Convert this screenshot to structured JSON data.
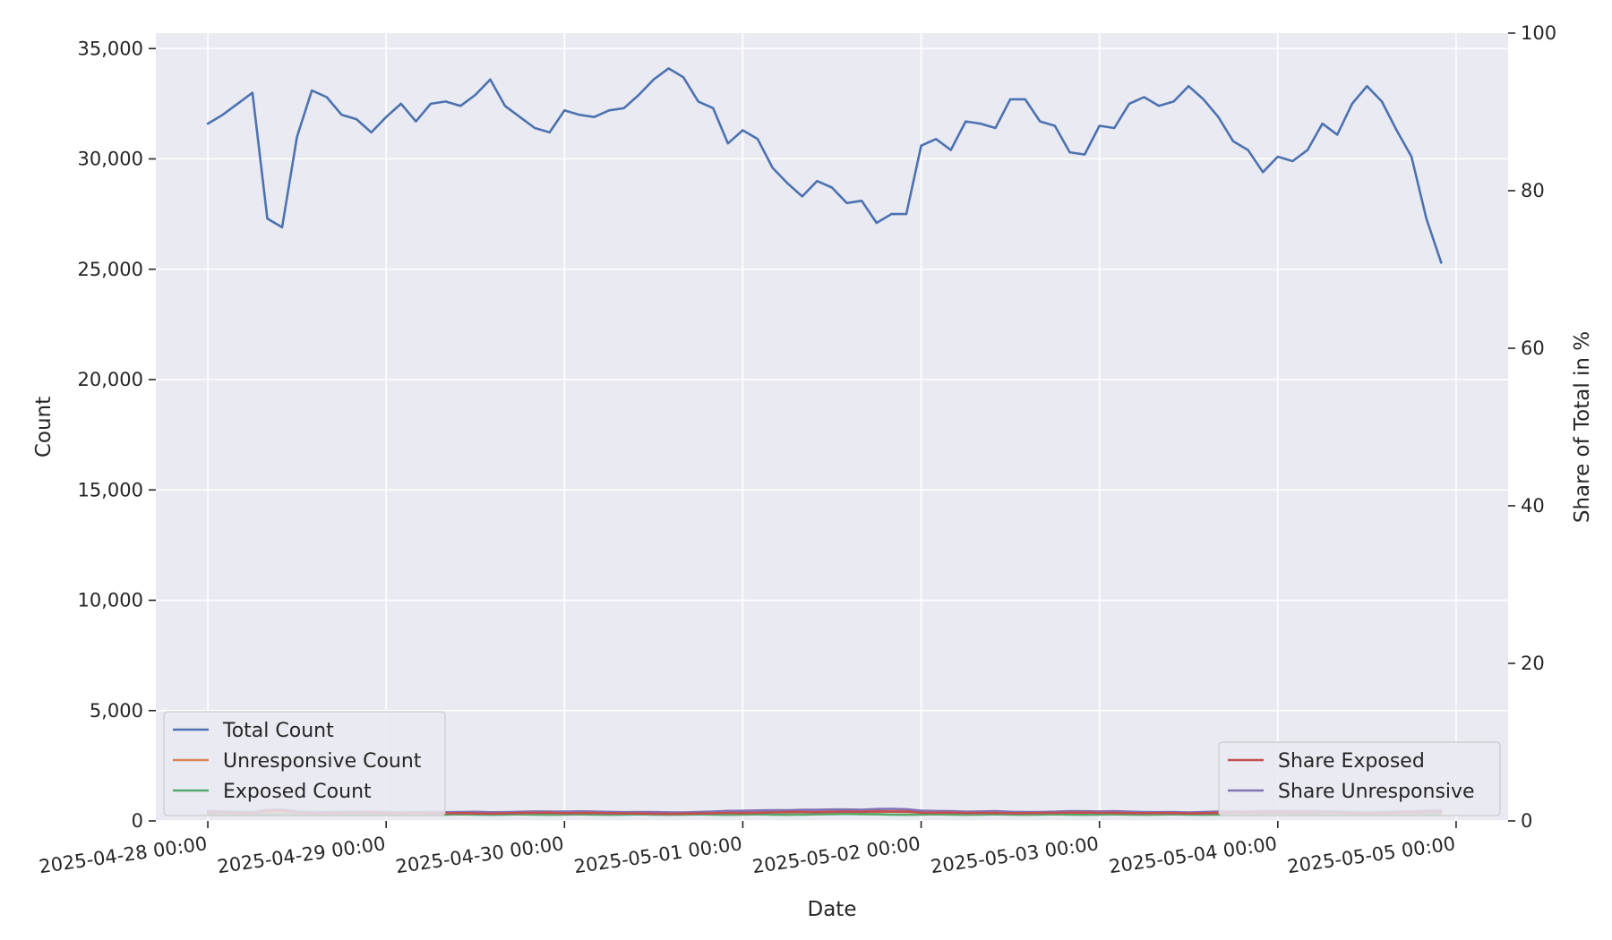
{
  "chart_data": {
    "type": "line",
    "xlabel": "Date",
    "ylabel": "Count",
    "y2label": "Share of Total in %",
    "x_start": "2025-04-28 00:00",
    "x_step_hours": 2,
    "x_ticks": [
      "2025-04-28 00:00",
      "2025-04-29 00:00",
      "2025-04-30 00:00",
      "2025-05-01 00:00",
      "2025-05-02 00:00",
      "2025-05-03 00:00",
      "2025-05-04 00:00",
      "2025-05-05 00:00"
    ],
    "ylim": [
      0,
      35700
    ],
    "y_ticks": [
      0,
      5000,
      10000,
      15000,
      20000,
      25000,
      30000,
      35000
    ],
    "y_tick_labels": [
      "0",
      "5,000",
      "10,000",
      "15,000",
      "20,000",
      "25,000",
      "30,000",
      "35,000"
    ],
    "y2lim": [
      0,
      100
    ],
    "y2_ticks": [
      0,
      20,
      40,
      60,
      80,
      100
    ],
    "y2_tick_labels": [
      "0",
      "20",
      "40",
      "60",
      "80",
      "100"
    ],
    "grid": true,
    "legend_left": [
      "Total Count",
      "Unresponsive Count",
      "Exposed Count"
    ],
    "legend_right": [
      "Share Exposed",
      "Share Unresponsive"
    ],
    "legend_left_placement": "lower-left",
    "legend_right_placement": "lower-right",
    "series": [
      {
        "name": "Total Count",
        "axis": "left",
        "color": "#4c72b0",
        "values": [
          31600,
          32000,
          32500,
          33000,
          27300,
          26900,
          31000,
          33100,
          32800,
          32000,
          31800,
          31200,
          31900,
          32500,
          31700,
          32500,
          32600,
          32400,
          32900,
          33600,
          32400,
          31900,
          31400,
          31200,
          32200,
          32000,
          31900,
          32200,
          32300,
          32900,
          33600,
          34100,
          33700,
          32600,
          32300,
          30700,
          31300,
          30900,
          29600,
          28900,
          28300,
          29000,
          28700,
          28000,
          28100,
          27100,
          27500,
          27500,
          30600,
          30900,
          30400,
          31700,
          31600,
          31400,
          32700,
          32700,
          31700,
          31500,
          30300,
          30200,
          31500,
          31400,
          32500,
          32800,
          32400,
          32600,
          33300,
          32700,
          31900,
          30800,
          30400,
          29400,
          30100,
          29900,
          30400,
          31600,
          31100,
          32500,
          33300,
          32600,
          31300,
          30100,
          27300,
          25300
        ]
      },
      {
        "name": "Unresponsive Count",
        "axis": "left",
        "color": "#dd8452",
        "values": [
          400,
          390,
          380,
          370,
          380,
          390,
          380,
          370,
          360,
          370,
          380,
          370,
          360,
          350,
          360,
          370,
          360,
          370,
          380,
          370,
          360,
          370,
          380,
          370,
          380,
          390,
          380,
          370,
          360,
          370,
          380,
          370,
          360,
          370,
          380,
          390,
          400,
          410,
          400,
          390,
          400,
          410,
          420,
          410,
          400,
          410,
          420,
          410,
          400,
          390,
          380,
          370,
          380,
          390,
          380,
          370,
          360,
          370,
          380,
          370,
          380,
          390,
          380,
          370,
          360,
          370,
          360,
          370,
          380,
          370,
          360,
          370,
          380,
          370,
          380,
          390,
          380,
          370,
          360,
          370,
          380,
          370,
          360,
          350
        ]
      },
      {
        "name": "Exposed Count",
        "axis": "left",
        "color": "#55a868",
        "values": [
          300,
          300,
          290,
          280,
          290,
          300,
          290,
          280,
          290,
          300,
          290,
          280,
          290,
          300,
          290,
          280,
          290,
          300,
          290,
          280,
          290,
          300,
          290,
          280,
          290,
          300,
          290,
          280,
          290,
          300,
          290,
          280,
          290,
          300,
          290,
          280,
          290,
          300,
          290,
          280,
          290,
          300,
          310,
          320,
          310,
          300,
          290,
          280,
          290,
          300,
          290,
          280,
          290,
          300,
          290,
          280,
          290,
          300,
          290,
          280,
          290,
          300,
          290,
          280,
          290,
          300,
          290,
          280,
          290,
          300,
          290,
          280,
          290,
          300,
          290,
          280,
          290,
          300,
          290,
          280,
          290,
          300,
          290,
          280
        ]
      },
      {
        "name": "Share Exposed",
        "axis": "right",
        "color": "#c44e52",
        "values": [
          1.05,
          1.02,
          1.0,
          0.98,
          1.3,
          1.35,
          1.0,
          0.95,
          0.97,
          1.0,
          1.02,
          1.05,
          1.0,
          0.97,
          1.0,
          0.98,
          0.97,
          0.99,
          0.96,
          0.93,
          0.98,
          1.0,
          1.03,
          1.04,
          0.98,
          1.0,
          1.01,
          0.98,
          0.97,
          0.95,
          0.92,
          0.9,
          0.93,
          0.96,
          0.98,
          1.02,
          1.0,
          1.03,
          1.08,
          1.12,
          1.15,
          1.1,
          1.14,
          1.18,
          1.16,
          1.22,
          1.2,
          1.2,
          1.05,
          1.03,
          1.06,
          1.0,
          1.01,
          1.02,
          0.98,
          0.98,
          1.01,
          1.02,
          1.06,
          1.07,
          1.02,
          1.03,
          0.99,
          0.98,
          1.0,
          0.99,
          0.96,
          0.98,
          1.01,
          1.04,
          1.06,
          1.09,
          1.06,
          1.07,
          1.05,
          1.01,
          1.03,
          0.98,
          0.96,
          0.98,
          1.02,
          1.06,
          1.12,
          1.15
        ]
      },
      {
        "name": "Share Unresponsive",
        "axis": "right",
        "color": "#8172b3",
        "values": [
          1.27,
          1.22,
          1.17,
          1.12,
          1.39,
          1.45,
          1.23,
          1.12,
          1.1,
          1.16,
          1.19,
          1.19,
          1.13,
          1.08,
          1.14,
          1.14,
          1.1,
          1.14,
          1.16,
          1.1,
          1.11,
          1.16,
          1.21,
          1.19,
          1.18,
          1.22,
          1.19,
          1.15,
          1.11,
          1.12,
          1.13,
          1.09,
          1.07,
          1.13,
          1.18,
          1.27,
          1.28,
          1.33,
          1.35,
          1.35,
          1.41,
          1.41,
          1.46,
          1.46,
          1.42,
          1.51,
          1.53,
          1.49,
          1.31,
          1.26,
          1.25,
          1.17,
          1.2,
          1.24,
          1.16,
          1.13,
          1.14,
          1.17,
          1.25,
          1.23,
          1.21,
          1.24,
          1.17,
          1.13,
          1.11,
          1.13,
          1.08,
          1.13,
          1.19,
          1.2,
          1.18,
          1.26,
          1.26,
          1.24,
          1.25,
          1.23,
          1.22,
          1.14,
          1.08,
          1.13,
          1.21,
          1.23,
          1.32,
          1.38
        ]
      }
    ]
  }
}
